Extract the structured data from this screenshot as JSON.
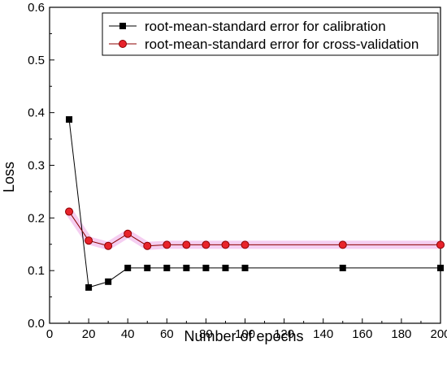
{
  "chart_data": {
    "type": "line",
    "xlabel": "Number of epochs",
    "ylabel": "Loss",
    "xlim": [
      0,
      200
    ],
    "ylim": [
      0.0,
      0.6
    ],
    "xticks": [
      "0",
      "20",
      "40",
      "60",
      "80",
      "100",
      "120",
      "140",
      "160",
      "180",
      "200"
    ],
    "xtick_values": [
      0,
      20,
      40,
      60,
      80,
      100,
      120,
      140,
      160,
      180,
      200
    ],
    "yticks": [
      "0.0",
      "0.1",
      "0.2",
      "0.3",
      "0.4",
      "0.5",
      "0.6"
    ],
    "ytick_values": [
      0.0,
      0.1,
      0.2,
      0.3,
      0.4,
      0.5,
      0.6
    ],
    "grid": false,
    "legend_position": "top-right",
    "series": [
      {
        "name": "root-mean-standard error for calibration",
        "marker": "square",
        "color": "#000000",
        "x": [
          10,
          20,
          30,
          40,
          50,
          60,
          70,
          80,
          90,
          100,
          150,
          200
        ],
        "y": [
          0.387,
          0.068,
          0.079,
          0.105,
          0.105,
          0.105,
          0.105,
          0.105,
          0.105,
          0.105,
          0.105,
          0.105
        ]
      },
      {
        "name": "root-mean-standard error for cross-validation",
        "marker": "circle",
        "color": "#8b0000",
        "marker_fill": "#e8232b",
        "highlight_color": "#f3c6ef",
        "x": [
          10,
          20,
          30,
          40,
          50,
          60,
          70,
          80,
          90,
          100,
          150,
          200
        ],
        "y": [
          0.212,
          0.157,
          0.147,
          0.17,
          0.147,
          0.149,
          0.149,
          0.149,
          0.149,
          0.149,
          0.149,
          0.149
        ]
      }
    ]
  }
}
